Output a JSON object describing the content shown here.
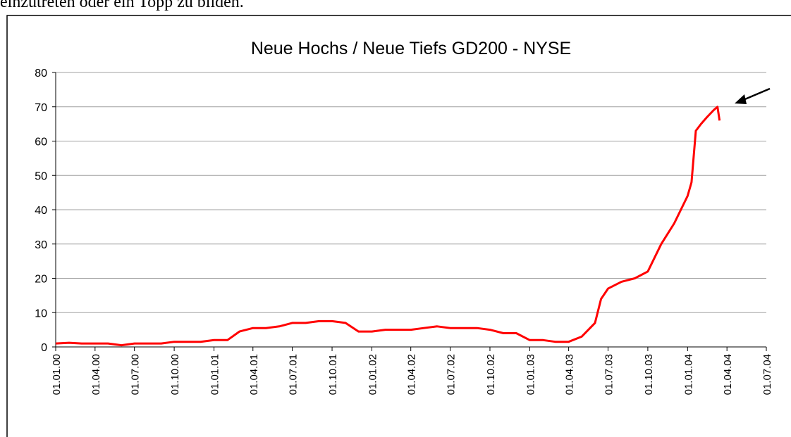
{
  "header_text": "einzutreten oder ein Topp zu bilden.",
  "chart_data": {
    "type": "line",
    "title": "Neue Hochs / Neue Tiefs GD200 - NYSE",
    "x": [
      "01.01.00",
      "01.02.00",
      "01.03.00",
      "01.04.00",
      "01.05.00",
      "01.06.00",
      "01.07.00",
      "01.08.00",
      "01.09.00",
      "01.10.00",
      "01.11.00",
      "01.12.00",
      "01.01.01",
      "01.02.01",
      "01.03.01",
      "01.04.01",
      "01.05.01",
      "01.06.01",
      "01.07.01",
      "01.08.01",
      "01.09.01",
      "01.10.01",
      "01.11.01",
      "01.12.01",
      "01.01.02",
      "01.02.02",
      "01.03.02",
      "01.04.02",
      "01.05.02",
      "01.06.02",
      "01.07.02",
      "01.08.02",
      "01.09.02",
      "01.10.02",
      "01.11.02",
      "01.12.02",
      "01.01.03",
      "01.02.03",
      "01.03.03",
      "01.04.03",
      "01.05.03",
      "01.06.03",
      "15.06.03",
      "01.07.03",
      "01.08.03",
      "01.09.03",
      "01.10.03",
      "01.11.03",
      "01.12.03",
      "01.01.04",
      "10.01.04",
      "20.01.04",
      "01.02.04",
      "15.02.04",
      "01.03.04",
      "10.03.04",
      "15.03.04"
    ],
    "series": [
      {
        "name": "Neue Hochs / Neue Tiefs",
        "color": "#ff0000",
        "values": [
          1,
          1.2,
          1,
          1,
          1,
          0.5,
          1,
          1,
          1,
          1.5,
          1.5,
          1.5,
          2,
          2,
          4.5,
          5.5,
          5.5,
          6,
          7,
          7,
          7.5,
          7.5,
          7,
          4.5,
          4.5,
          5,
          5,
          5,
          5.5,
          6,
          5.5,
          5.5,
          5.5,
          5,
          4,
          4,
          2,
          2,
          1.5,
          1.5,
          3,
          7,
          14,
          17,
          19,
          20,
          22,
          30,
          36,
          44,
          48,
          63,
          65,
          67,
          69,
          70,
          66
        ]
      }
    ],
    "xlim": [
      "01.01.00",
      "01.07.04"
    ],
    "xticks": [
      "01.01.00",
      "01.04.00",
      "01.07.00",
      "01.10.00",
      "01.01.01",
      "01.04.01",
      "01.07.01",
      "01.10.01",
      "01.01.02",
      "01.04.02",
      "01.07.02",
      "01.10.02",
      "01.01.03",
      "01.04.03",
      "01.07.03",
      "01.10.03",
      "01.01.04",
      "01.04.04",
      "01.07.04"
    ],
    "ylim": [
      0,
      80
    ],
    "yticks": [
      0,
      10,
      20,
      30,
      40,
      50,
      60,
      70,
      80
    ],
    "grid": true
  }
}
